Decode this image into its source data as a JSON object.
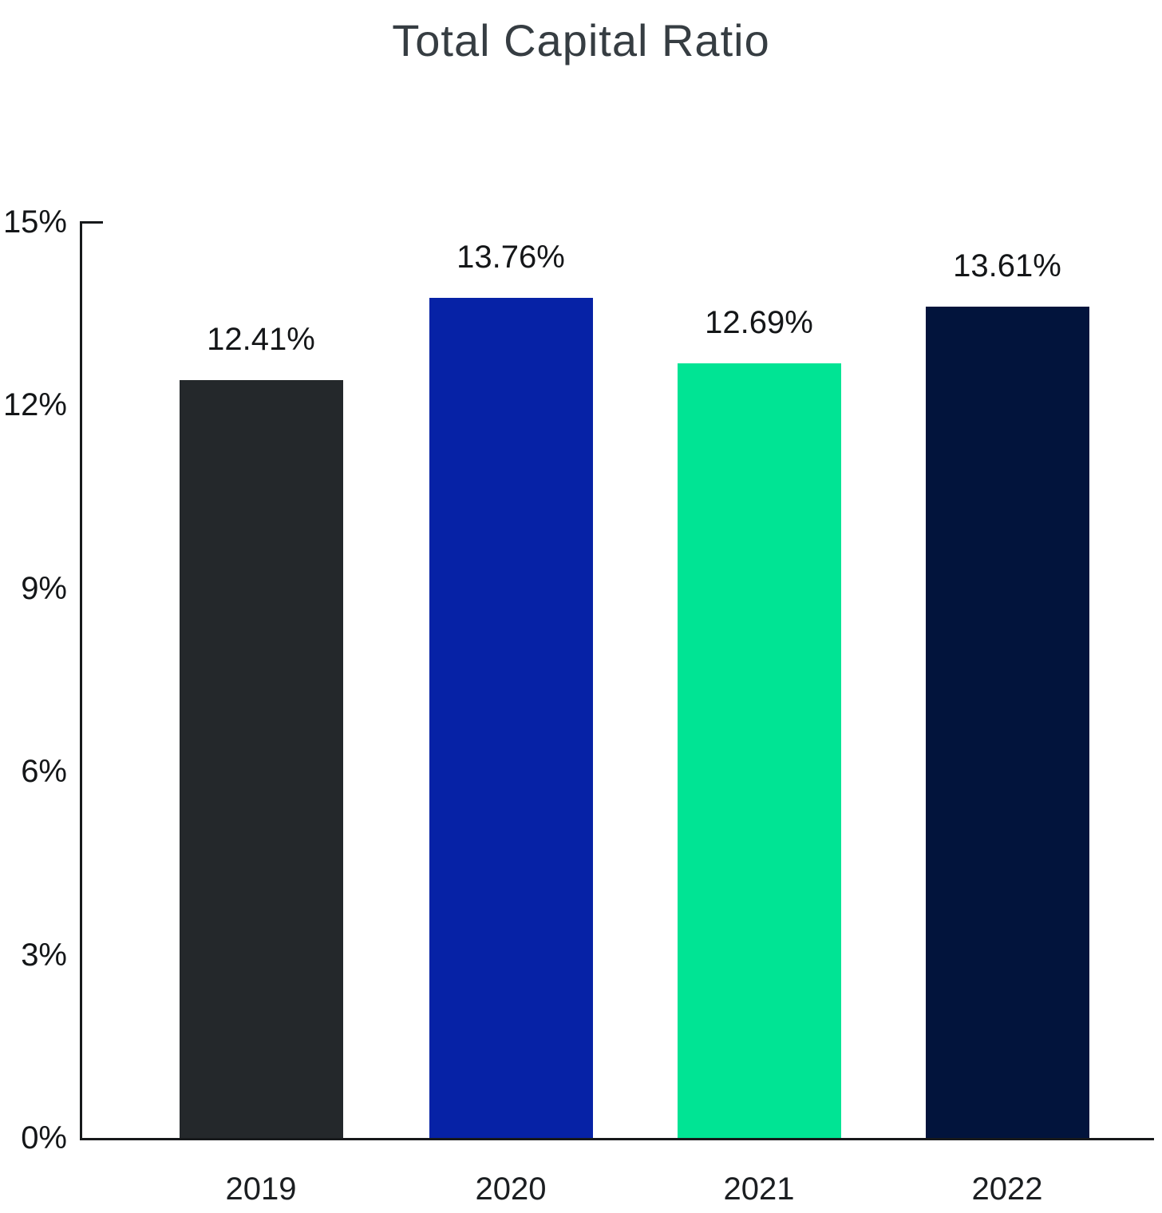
{
  "chart_data": {
    "type": "bar",
    "title": "Total Capital Ratio",
    "categories": [
      "2019",
      "2020",
      "2021",
      "2022"
    ],
    "values": [
      12.41,
      13.76,
      12.69,
      13.61
    ],
    "value_labels": [
      "12.41%",
      "13.76%",
      "12.69%",
      "13.61%"
    ],
    "bar_colors": [
      "#24282b",
      "#0622a6",
      "#00e494",
      "#02143c"
    ],
    "ylim": [
      0,
      15
    ],
    "yticks": [
      {
        "label": "15%",
        "value": 15
      },
      {
        "label": "12%",
        "value": 12
      },
      {
        "label": "9%",
        "value": 9
      },
      {
        "label": "6%",
        "value": 6
      },
      {
        "label": "3%",
        "value": 3
      },
      {
        "label": "0%",
        "value": 0
      }
    ],
    "xlabel": "",
    "ylabel": "",
    "grid": false,
    "legend": false,
    "colors": {
      "title": "#363d42",
      "axis": "#17191b",
      "labels": "#141618"
    }
  }
}
